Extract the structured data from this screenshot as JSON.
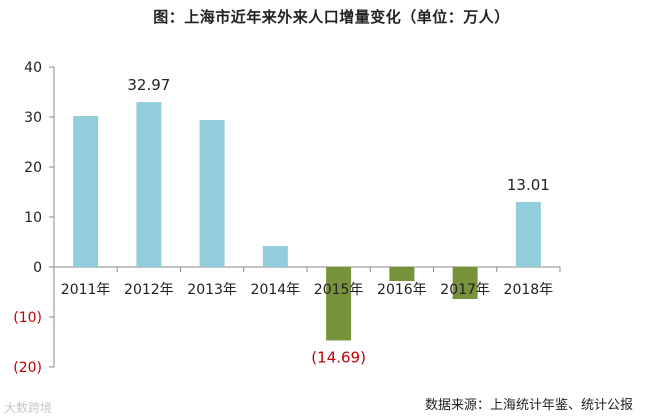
{
  "chart_data": {
    "type": "bar",
    "title": "图：上海市近年来外来人口增量变化（单位：万人）",
    "categories": [
      "2011年",
      "2012年",
      "2013年",
      "2014年",
      "2015年",
      "2016年",
      "2017年",
      "2018年"
    ],
    "values": [
      30.2,
      32.97,
      29.4,
      4.2,
      -14.69,
      -2.8,
      -6.4,
      13.01
    ],
    "data_labels": [
      null,
      "32.97",
      null,
      null,
      "(14.69)",
      null,
      null,
      "13.01"
    ],
    "ylim": [
      -20,
      40
    ],
    "yticks": [
      {
        "value": 40,
        "label": "40"
      },
      {
        "value": 30,
        "label": "30"
      },
      {
        "value": 20,
        "label": "20"
      },
      {
        "value": 10,
        "label": "10"
      },
      {
        "value": 0,
        "label": "0"
      },
      {
        "value": -10,
        "label": "(10)"
      },
      {
        "value": -20,
        "label": "(20)"
      }
    ],
    "xlabel": "",
    "ylabel": "",
    "grid": false,
    "colors": {
      "positive": "#92CDDC",
      "negative": "#77933C",
      "negative_text": "#C00000",
      "axis": "#888888"
    }
  },
  "source": "数据来源：上海统计年鉴、统计公报",
  "watermark": "大数跨境"
}
